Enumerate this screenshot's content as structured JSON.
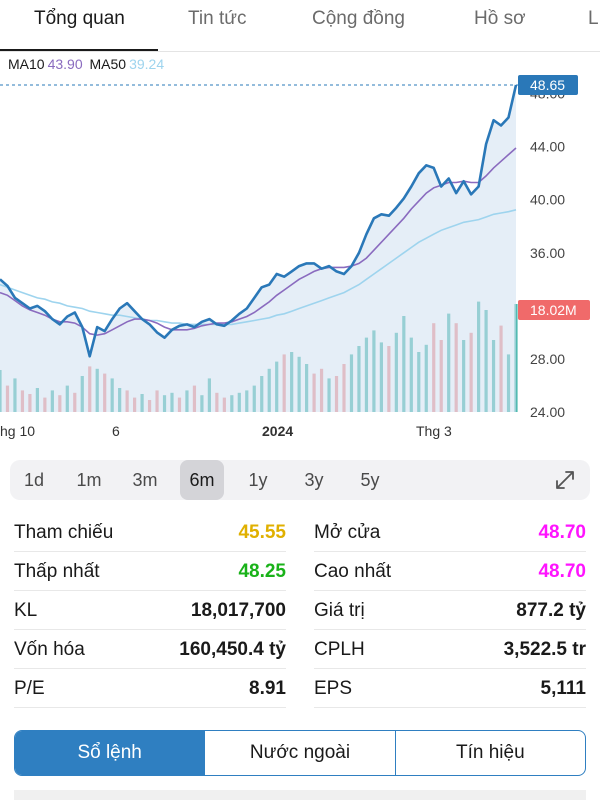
{
  "tabs": [
    {
      "label": "Tổng quan",
      "active": true
    },
    {
      "label": "Tin tức",
      "active": false
    },
    {
      "label": "Cộng đồng",
      "active": false
    },
    {
      "label": "Hồ sơ",
      "active": false
    },
    {
      "label": "L",
      "active": false
    }
  ],
  "ma_legend": {
    "ma10_label": "MA10",
    "ma10_value": "43.90",
    "ma50_label": "MA50",
    "ma50_value": "39.24"
  },
  "colors": {
    "price_line": "#2a78b8",
    "area_fill": "#cfe0f0",
    "ma10": "#8a6bbf",
    "ma50": "#9ed4ee",
    "volume_up": "#3fb3a8",
    "volume_down": "#f08a8a",
    "price_tag": "#2a78b8",
    "volume_tag": "#f06a6a",
    "ref_yellow": "#e0b000",
    "green": "#19b219",
    "magenta": "#ff14ff",
    "segment_blue": "#2f7fc1"
  },
  "chart_data": {
    "type": "line",
    "ylim": [
      24,
      48.65
    ],
    "y_ticks": [
      "24.00",
      "28.00",
      "32.00",
      "36.00",
      "40.00",
      "44.00",
      "48.00"
    ],
    "x_tick_labels": [
      "hg 10",
      "6",
      "2024",
      "Thg 3"
    ],
    "current_price_label": "48.65",
    "current_price": 48.65,
    "volume_label": "18.02M",
    "price": [
      34.0,
      33.5,
      32.6,
      32.2,
      31.8,
      32.0,
      31.6,
      31.0,
      30.6,
      31.2,
      31.5,
      30.4,
      28.2,
      30.4,
      30.1,
      31.0,
      31.8,
      32.2,
      31.6,
      31.0,
      30.6,
      30.0,
      29.6,
      30.2,
      30.5,
      30.6,
      30.4,
      30.8,
      31.0,
      30.6,
      30.5,
      30.9,
      31.4,
      31.8,
      32.6,
      33.4,
      33.6,
      34.4,
      34.2,
      34.6,
      35.0,
      35.2,
      35.2,
      34.8,
      35.0,
      34.6,
      34.4,
      35.0,
      36.0,
      37.4,
      38.6,
      38.9,
      38.8,
      39.4,
      40.1,
      41.0,
      42.0,
      42.6,
      42.4,
      41.0,
      41.6,
      40.5,
      41.4,
      40.4,
      41.0,
      44.2,
      46.0,
      45.6,
      46.2,
      48.65
    ],
    "ma10": [
      33.0,
      32.8,
      32.4,
      32.0,
      31.7,
      31.5,
      31.3,
      31.0,
      30.8,
      30.8,
      30.7,
      30.4,
      29.9,
      29.8,
      29.9,
      30.2,
      30.5,
      30.8,
      31.0,
      31.0,
      30.9,
      30.7,
      30.4,
      30.2,
      30.2,
      30.2,
      30.3,
      30.5,
      30.6,
      30.7,
      30.7,
      30.8,
      31.0,
      31.2,
      31.5,
      31.9,
      32.3,
      32.8,
      33.2,
      33.6,
      34.0,
      34.3,
      34.6,
      34.8,
      34.9,
      34.9,
      34.9,
      35.0,
      35.2,
      35.6,
      36.2,
      36.8,
      37.4,
      38.0,
      38.6,
      39.3,
      39.9,
      40.5,
      40.9,
      41.1,
      41.3,
      41.3,
      41.4,
      41.3,
      41.3,
      41.8,
      42.4,
      42.9,
      43.4,
      43.9
    ],
    "ma50": [
      33.6,
      33.4,
      33.2,
      33.0,
      32.8,
      32.6,
      32.5,
      32.3,
      32.2,
      32.0,
      31.9,
      31.8,
      31.6,
      31.5,
      31.4,
      31.3,
      31.3,
      31.2,
      31.1,
      31.0,
      30.9,
      30.9,
      30.8,
      30.7,
      30.7,
      30.6,
      30.6,
      30.6,
      30.6,
      30.6,
      30.6,
      30.6,
      30.7,
      30.8,
      30.9,
      31.0,
      31.1,
      31.3,
      31.4,
      31.6,
      31.8,
      32.0,
      32.2,
      32.4,
      32.6,
      32.8,
      33.0,
      33.3,
      33.6,
      34.0,
      34.4,
      34.8,
      35.2,
      35.6,
      36.0,
      36.4,
      36.8,
      37.1,
      37.4,
      37.7,
      37.9,
      38.1,
      38.3,
      38.4,
      38.5,
      38.7,
      38.9,
      39.0,
      39.1,
      39.24
    ],
    "volume": [
      0.35,
      0.22,
      0.28,
      0.18,
      0.15,
      0.2,
      0.12,
      0.18,
      0.14,
      0.22,
      0.16,
      0.3,
      0.38,
      0.36,
      0.32,
      0.28,
      0.2,
      0.18,
      0.12,
      0.15,
      0.1,
      0.18,
      0.14,
      0.16,
      0.12,
      0.18,
      0.22,
      0.14,
      0.28,
      0.16,
      0.12,
      0.14,
      0.16,
      0.18,
      0.22,
      0.3,
      0.36,
      0.42,
      0.48,
      0.5,
      0.46,
      0.4,
      0.32,
      0.36,
      0.28,
      0.3,
      0.4,
      0.48,
      0.55,
      0.62,
      0.68,
      0.58,
      0.55,
      0.66,
      0.8,
      0.62,
      0.5,
      0.56,
      0.74,
      0.6,
      0.82,
      0.74,
      0.6,
      0.66,
      0.92,
      0.85,
      0.6,
      0.72,
      0.48,
      0.9
    ],
    "volume_up": [
      true,
      false,
      true,
      false,
      false,
      true,
      false,
      true,
      false,
      true,
      false,
      true,
      false,
      true,
      false,
      true,
      true,
      false,
      false,
      true,
      false,
      false,
      true,
      true,
      false,
      true,
      false,
      true,
      true,
      false,
      false,
      true,
      true,
      true,
      true,
      true,
      true,
      true,
      false,
      true,
      true,
      true,
      false,
      false,
      true,
      false,
      false,
      true,
      true,
      true,
      true,
      true,
      false,
      true,
      true,
      true,
      true,
      true,
      false,
      false,
      true,
      false,
      true,
      false,
      true,
      true,
      true,
      false,
      true,
      true
    ]
  },
  "ranges": [
    {
      "label": "1d",
      "active": false
    },
    {
      "label": "1m",
      "active": false
    },
    {
      "label": "3m",
      "active": false
    },
    {
      "label": "6m",
      "active": true
    },
    {
      "label": "1y",
      "active": false
    },
    {
      "label": "3y",
      "active": false
    },
    {
      "label": "5y",
      "active": false
    }
  ],
  "stats": {
    "left": [
      {
        "label": "Tham chiếu",
        "value": "45.55",
        "color": "#e0b000"
      },
      {
        "label": "Thấp nhất",
        "value": "48.25",
        "color": "#19b219"
      },
      {
        "label": "KL",
        "value": "18,017,700",
        "color": "#1a1a1a"
      },
      {
        "label": "Vốn hóa",
        "value": "160,450.4 tỷ",
        "color": "#1a1a1a"
      },
      {
        "label": "P/E",
        "value": "8.91",
        "color": "#1a1a1a"
      }
    ],
    "right": [
      {
        "label": "Mở cửa",
        "value": "48.70",
        "color": "#ff14ff"
      },
      {
        "label": "Cao nhất",
        "value": "48.70",
        "color": "#ff14ff"
      },
      {
        "label": "Giá trị",
        "value": "877.2 tỷ",
        "color": "#1a1a1a"
      },
      {
        "label": "CPLH",
        "value": "3,522.5 tr",
        "color": "#1a1a1a"
      },
      {
        "label": "EPS",
        "value": "5,111",
        "color": "#1a1a1a"
      }
    ]
  },
  "segments": [
    {
      "label": "Sổ lệnh",
      "active": true
    },
    {
      "label": "Nước ngoài",
      "active": false
    },
    {
      "label": "Tín hiệu",
      "active": false
    }
  ]
}
